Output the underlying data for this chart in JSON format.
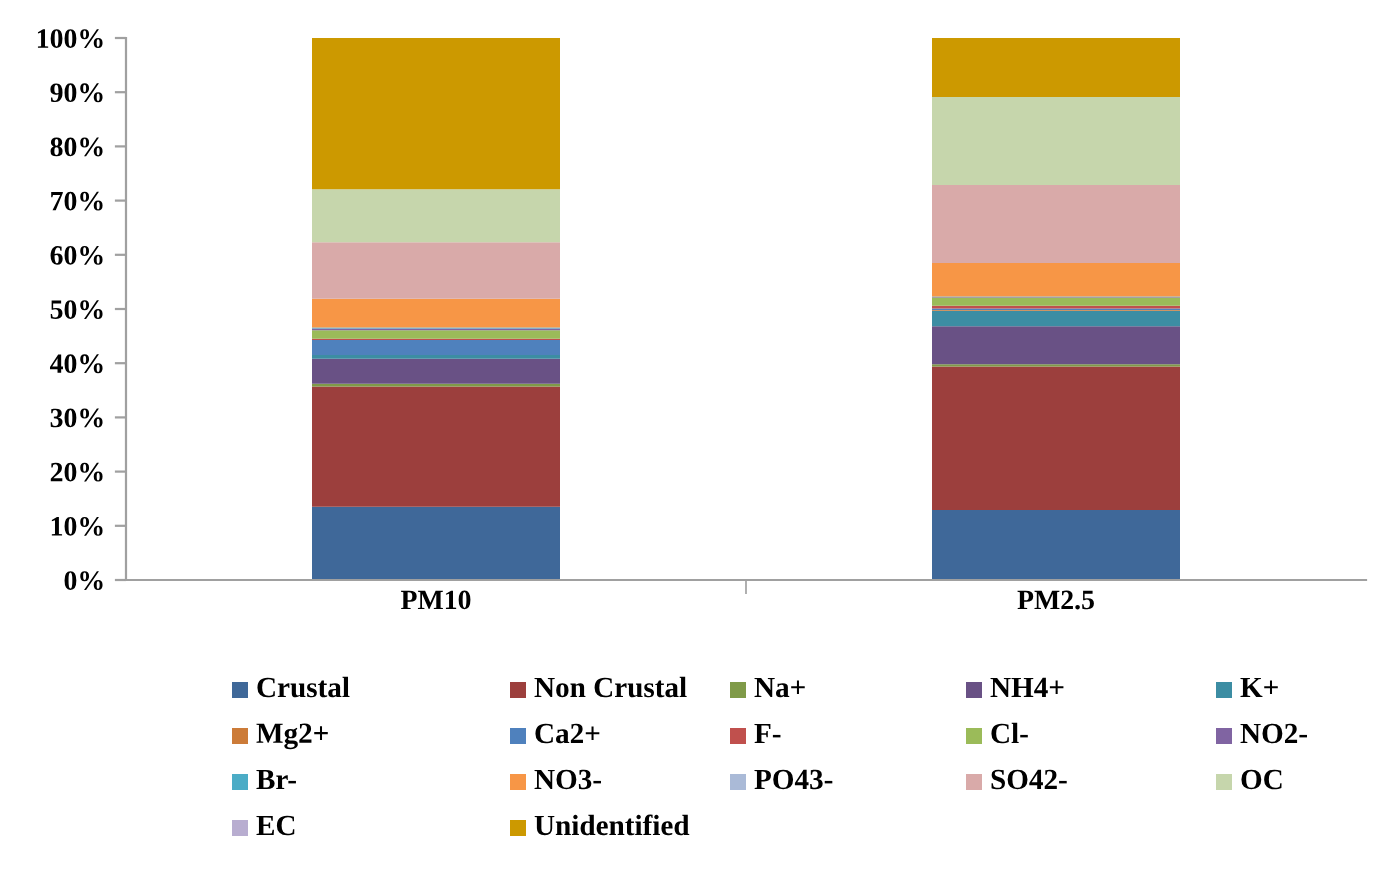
{
  "chart_data": {
    "type": "bar",
    "stacked": true,
    "categories": [
      "PM10",
      "PM2.5"
    ],
    "ylim": [
      0,
      100
    ],
    "yticks": [
      {
        "value": 0,
        "label": "0%"
      },
      {
        "value": 10,
        "label": "10%"
      },
      {
        "value": 20,
        "label": "20%"
      },
      {
        "value": 30,
        "label": "30%"
      },
      {
        "value": 40,
        "label": "40%"
      },
      {
        "value": 50,
        "label": "50%"
      },
      {
        "value": 60,
        "label": "60%"
      },
      {
        "value": 70,
        "label": "70%"
      },
      {
        "value": 80,
        "label": "80%"
      },
      {
        "value": 90,
        "label": "90%"
      },
      {
        "value": 100,
        "label": "100%"
      }
    ],
    "grid": false,
    "legend": "bottom",
    "series": [
      {
        "name": "Crustal",
        "color": "#3f6899",
        "values": [
          13.5,
          12.9
        ]
      },
      {
        "name": "Non Crustal",
        "color": "#9c3f3d",
        "values": [
          22.2,
          26.5
        ]
      },
      {
        "name": "Na+",
        "color": "#7f9a48",
        "values": [
          0.5,
          0.4
        ]
      },
      {
        "name": "NH4+",
        "color": "#695185",
        "values": [
          4.6,
          7.0
        ]
      },
      {
        "name": "K+",
        "color": "#3c8da3",
        "values": [
          0.7,
          2.9
        ]
      },
      {
        "name": "Mg2+",
        "color": "#cc7b38",
        "values": [
          null,
          0.1
        ]
      },
      {
        "name": "Ca2+",
        "color": "#4f81bd",
        "values": [
          2.8,
          0.3
        ]
      },
      {
        "name": "F-",
        "color": "#c0504d",
        "values": [
          0.2,
          0.5
        ]
      },
      {
        "name": "Cl-",
        "color": "#9bbb59",
        "values": [
          1.6,
          1.5
        ]
      },
      {
        "name": "NO2-",
        "color": "#8064a2",
        "values": [
          0.3,
          0.1
        ]
      },
      {
        "name": "Br-",
        "color": "#4bacc6",
        "values": [
          0.2,
          0.1
        ]
      },
      {
        "name": "NO3-",
        "color": "#f79646",
        "values": [
          5.3,
          6.2
        ]
      },
      {
        "name": "PO43-",
        "color": "#aabad7",
        "values": [
          null,
          null
        ]
      },
      {
        "name": "SO42-",
        "color": "#d9aaa9",
        "values": [
          10.4,
          14.4
        ]
      },
      {
        "name": "OC",
        "color": "#c6d6ac",
        "values": [
          9.8,
          16.2
        ]
      },
      {
        "name": "EC",
        "color": "#b8add0",
        "values": [
          null,
          null
        ]
      },
      {
        "name": "Unidentified",
        "color": "#cc9900",
        "values": [
          27.9,
          10.9
        ]
      }
    ]
  }
}
